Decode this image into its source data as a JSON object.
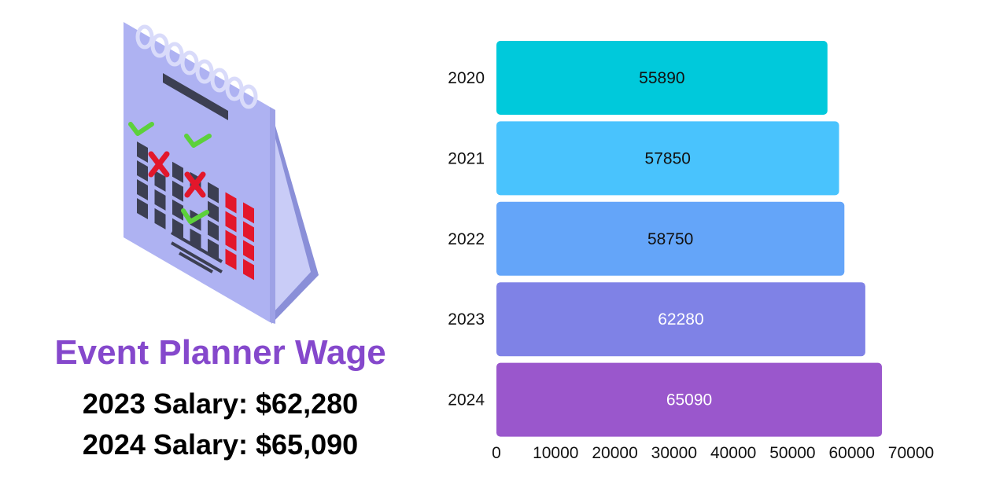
{
  "header": {
    "title": "Event Planner Wage",
    "salary_2023": "2023 Salary: $62,280",
    "salary_2024": "2024 Salary: $65,090",
    "title_color": "#8548cc"
  },
  "illustration": {
    "icon": "calendar-icon"
  },
  "chart_data": {
    "type": "bar",
    "orientation": "horizontal",
    "categories": [
      "2020",
      "2021",
      "2022",
      "2023",
      "2024"
    ],
    "values": [
      55890,
      57850,
      58750,
      62280,
      65090
    ],
    "data_labels": [
      "55890",
      "57850",
      "58750",
      "62280",
      "65090"
    ],
    "colors": [
      "#00c9db",
      "#49c3fd",
      "#64a5f9",
      "#7f82e6",
      "#9a57cc"
    ],
    "label_colors": [
      "#111111",
      "#111111",
      "#111111",
      "#ffffff",
      "#ffffff"
    ],
    "xlim": [
      0,
      70000
    ],
    "xticks": [
      0,
      10000,
      20000,
      30000,
      40000,
      50000,
      60000,
      70000
    ],
    "xtick_labels": [
      "0",
      "10000",
      "20000",
      "30000",
      "40000",
      "50000",
      "60000",
      "70000"
    ],
    "title": "",
    "xlabel": "",
    "ylabel": "",
    "grid": false,
    "legend": "none"
  }
}
